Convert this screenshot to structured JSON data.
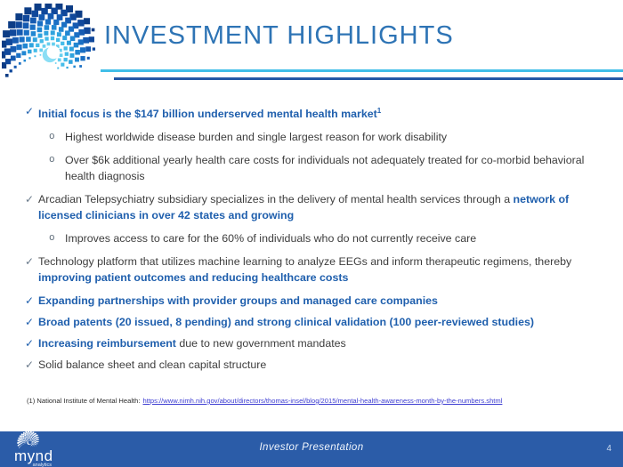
{
  "header": {
    "title": "INVESTMENT HIGHLIGHTS"
  },
  "content": {
    "check_glyph": "✓",
    "sub_glyph": "o",
    "bullets": [
      {
        "level": 1,
        "runs": [
          {
            "t": "Initial focus is the $147 billion underserved mental health market",
            "e": true
          },
          {
            "t": "1",
            "e": true,
            "sup": true
          }
        ]
      },
      {
        "level": 2,
        "runs": [
          {
            "t": "Highest worldwide disease burden and single largest reason for work disability"
          }
        ]
      },
      {
        "level": 2,
        "runs": [
          {
            "t": "Over $6k additional yearly health care costs for individuals not adequately treated for co-morbid behavioral health diagnosis"
          }
        ]
      },
      {
        "level": 1,
        "runs": [
          {
            "t": "Arcadian Telepsychiatry subsidiary specializes in the delivery of mental health services through a "
          },
          {
            "t": "network of licensed clinicians in over 42 states and growing",
            "e": true
          }
        ]
      },
      {
        "level": 2,
        "runs": [
          {
            "t": "Improves access to care for the 60% of individuals who do not currently receive care"
          }
        ]
      },
      {
        "level": 1,
        "runs": [
          {
            "t": "Technology platform that utilizes machine learning to analyze EEGs and inform therapeutic regimens, thereby "
          },
          {
            "t": "improving patient outcomes and reducing healthcare costs",
            "e": true
          }
        ]
      },
      {
        "level": 1,
        "runs": [
          {
            "t": "Expanding partnerships with provider groups and managed care companies",
            "e": true
          }
        ]
      },
      {
        "level": 1,
        "runs": [
          {
            "t": "Broad patents (20 issued, 8 pending) and strong clinical validation (100 peer-reviewed studies)",
            "e": true
          }
        ]
      },
      {
        "level": 1,
        "runs": [
          {
            "t": "Increasing reimbursement ",
            "e": true
          },
          {
            "t": "due to new government mandates"
          }
        ]
      },
      {
        "level": 1,
        "runs": [
          {
            "t": "Solid balance sheet and clean capital structure"
          }
        ]
      }
    ]
  },
  "footnote": {
    "label": "(1) National Institute of Mental Health:",
    "url": "https://www.nimh.nih.gov/about/directors/thomas-insel/blog/2015/mental-health-awareness-month-by-the-numbers.shtml"
  },
  "footer": {
    "logo_name": "mynd",
    "logo_sub": "analytics",
    "center_text": "Investor Presentation",
    "page_number": "4"
  },
  "colors": {
    "accent_blue": "#1F5FAD",
    "title_blue": "#2E74B5",
    "rule_light": "#41BEE8",
    "rule_dark": "#2458A6",
    "footer_bar": "#2B5CA8",
    "body_text": "#3D3D3D",
    "link_blue": "#3C3CD2"
  }
}
